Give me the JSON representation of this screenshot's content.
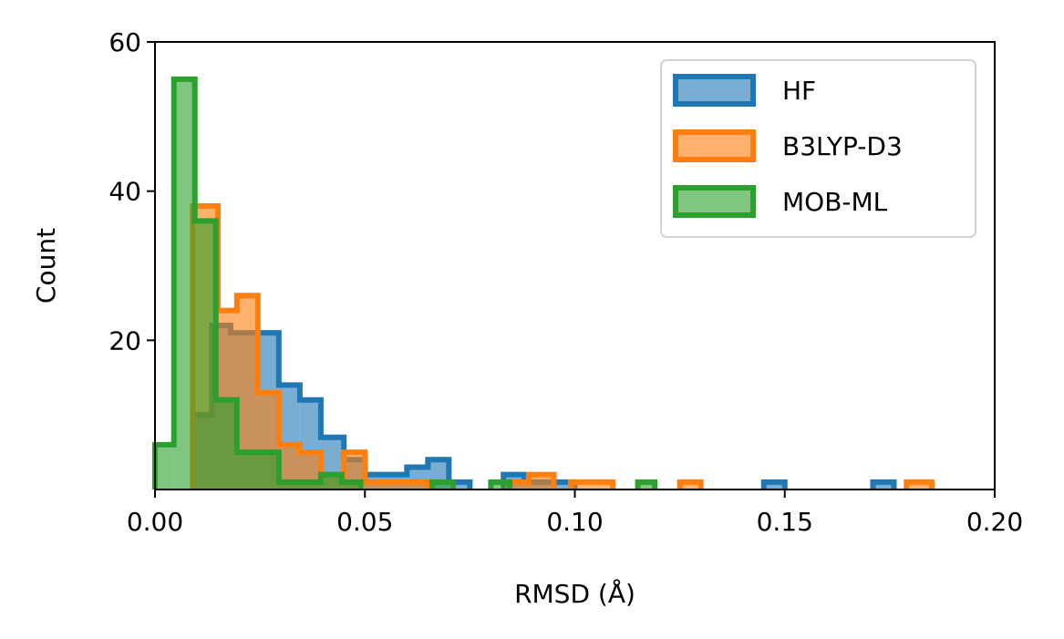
{
  "chart_data": {
    "type": "histogram",
    "title": "",
    "xlabel": "RMSD (Å)",
    "ylabel": "Count",
    "xlim": [
      0.0,
      0.2
    ],
    "ylim": [
      0,
      60
    ],
    "xticks": [
      0.0,
      0.05,
      0.1,
      0.15,
      0.2
    ],
    "xtick_labels": [
      "0.00",
      "0.05",
      "0.10",
      "0.15",
      "0.20"
    ],
    "yticks": [
      20,
      40,
      60
    ],
    "ytick_labels": [
      "20",
      "40",
      "60"
    ],
    "grid": false,
    "legend_position": "top-right",
    "series": [
      {
        "name": "HF",
        "color": "#1f77b4",
        "bins": [
          [
            0.009,
            0.0135,
            10
          ],
          [
            0.0135,
            0.018,
            22
          ],
          [
            0.018,
            0.0245,
            21
          ],
          [
            0.0245,
            0.0295,
            21
          ],
          [
            0.0295,
            0.0345,
            14
          ],
          [
            0.0345,
            0.0395,
            12
          ],
          [
            0.0395,
            0.045,
            7
          ],
          [
            0.045,
            0.05,
            4
          ],
          [
            0.05,
            0.0555,
            2
          ],
          [
            0.0555,
            0.06,
            2
          ],
          [
            0.06,
            0.065,
            3
          ],
          [
            0.065,
            0.07,
            4
          ],
          [
            0.07,
            0.075,
            1
          ],
          [
            0.083,
            0.088,
            2
          ],
          [
            0.088,
            0.094,
            1
          ],
          [
            0.094,
            0.1,
            1
          ],
          [
            0.145,
            0.15,
            1
          ],
          [
            0.171,
            0.176,
            1
          ]
        ]
      },
      {
        "name": "B3LYP-D3",
        "color": "#ff7f0e",
        "bins": [
          [
            0.009,
            0.015,
            38
          ],
          [
            0.015,
            0.0195,
            24
          ],
          [
            0.0195,
            0.0245,
            26
          ],
          [
            0.0245,
            0.0295,
            13
          ],
          [
            0.0295,
            0.0345,
            6
          ],
          [
            0.0345,
            0.0395,
            5
          ],
          [
            0.0395,
            0.045,
            2
          ],
          [
            0.045,
            0.05,
            5
          ],
          [
            0.05,
            0.0555,
            1
          ],
          [
            0.0555,
            0.06,
            1
          ],
          [
            0.06,
            0.065,
            1
          ],
          [
            0.084,
            0.089,
            1
          ],
          [
            0.089,
            0.095,
            2
          ],
          [
            0.099,
            0.109,
            1
          ],
          [
            0.125,
            0.13,
            1
          ],
          [
            0.179,
            0.185,
            1
          ]
        ]
      },
      {
        "name": "MOB-ML",
        "color": "#2ca02c",
        "bins": [
          [
            0.0,
            0.0045,
            6
          ],
          [
            0.0045,
            0.0095,
            55
          ],
          [
            0.0095,
            0.0145,
            36
          ],
          [
            0.0145,
            0.0195,
            12
          ],
          [
            0.0195,
            0.0245,
            5
          ],
          [
            0.0245,
            0.0295,
            5
          ],
          [
            0.0295,
            0.0345,
            1
          ],
          [
            0.0345,
            0.0395,
            1
          ],
          [
            0.0395,
            0.0445,
            2
          ],
          [
            0.0445,
            0.049,
            1
          ],
          [
            0.066,
            0.071,
            1
          ],
          [
            0.08,
            0.0845,
            1
          ],
          [
            0.115,
            0.119,
            1
          ]
        ]
      }
    ]
  }
}
